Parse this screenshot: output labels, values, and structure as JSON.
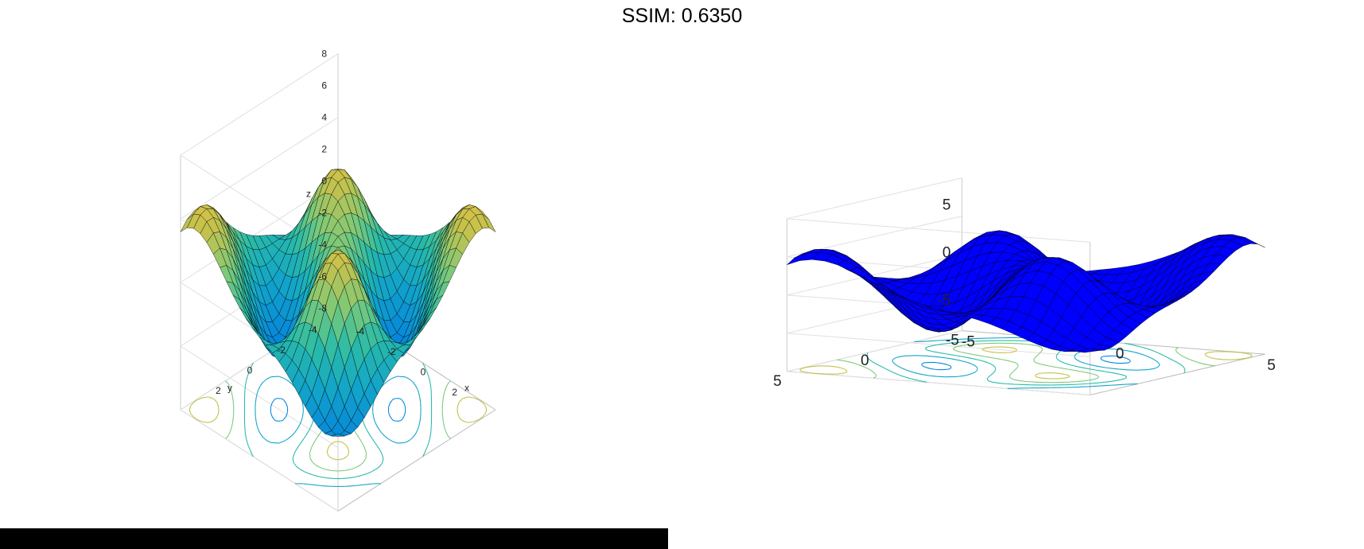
{
  "title": "SSIM: 0.6350",
  "colors": {
    "panel2_surface": "#0000ff",
    "edge": "#000000",
    "grid": "#dcdcdc",
    "bottom_bar": "#000000"
  },
  "chart_data": [
    {
      "type": "surface",
      "panel": "left",
      "colormap": "parula",
      "surface_style": "faceted, interpolated colormap",
      "contour_below": true,
      "grid": true,
      "x_ticks": [
        "-4",
        "-2",
        "0",
        "2"
      ],
      "y_ticks": [
        "-4",
        "-2",
        "0",
        "2"
      ],
      "z_ticks": [
        "8",
        "6",
        "4",
        "2",
        "0",
        "-2",
        "-4",
        "-6",
        "-8"
      ],
      "xlabel": "x",
      "ylabel": "y",
      "zlabel": "z",
      "xlim": [
        -5,
        5
      ],
      "ylim": [
        -5,
        5
      ],
      "zlim": [
        -8,
        8
      ]
    },
    {
      "type": "surface",
      "panel": "right",
      "surface_color": "blue",
      "surface_style": "faceted, solid color",
      "contour_below": true,
      "grid": true,
      "x_ticks": [
        "-5",
        "0",
        "5"
      ],
      "y_ticks": [
        "5",
        "0",
        "-5"
      ],
      "z_ticks": [
        "5",
        "0",
        "-5"
      ],
      "xlabel": "",
      "ylabel": "",
      "zlabel": "",
      "xlim": [
        -5,
        5
      ],
      "ylim": [
        -5,
        5
      ],
      "zlim": [
        -8,
        8
      ]
    }
  ]
}
